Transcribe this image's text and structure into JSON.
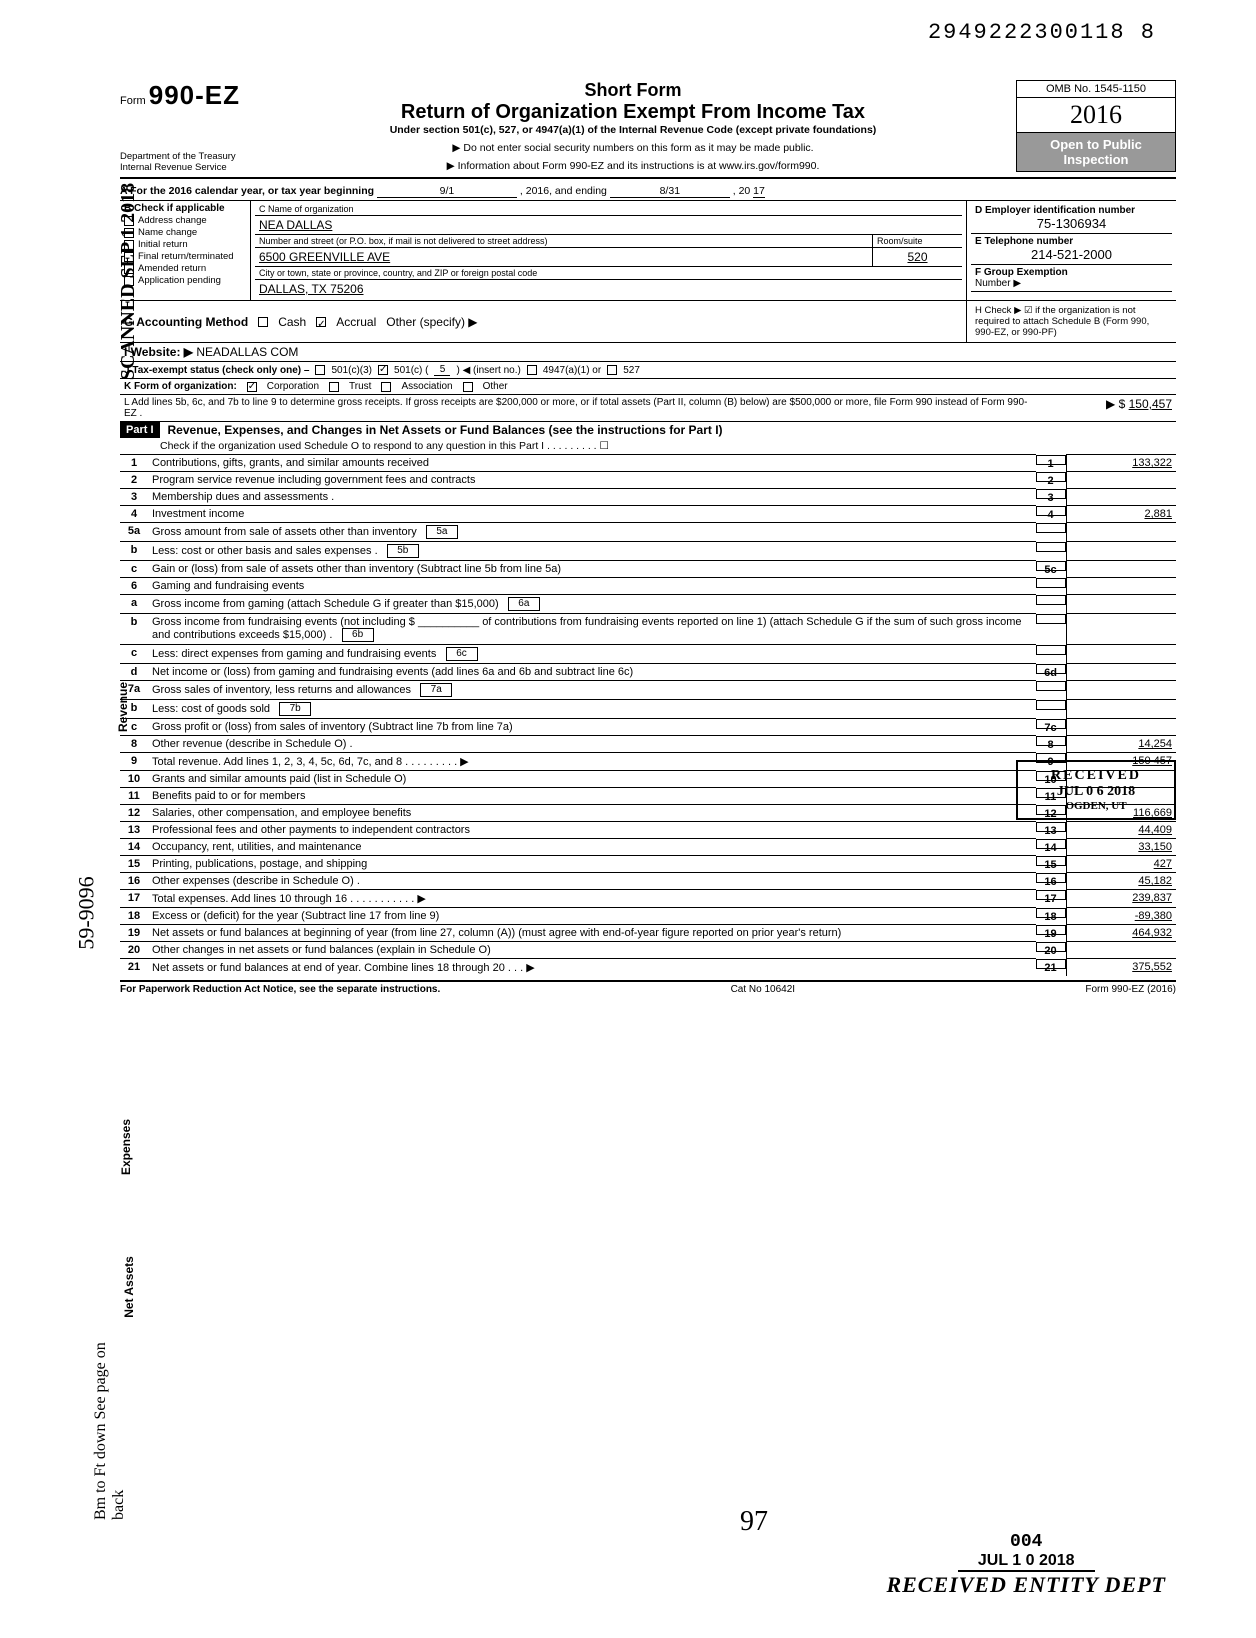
{
  "top_id": "2949222300118  8",
  "omb": "OMB No. 1545-1150",
  "form_prefix": "Form",
  "form_number": "990-EZ",
  "title_short": "Short Form",
  "title_main": "Return of Organization Exempt From Income Tax",
  "title_under": "Under section 501(c), 527, or 4947(a)(1) of the Internal Revenue Code (except private foundations)",
  "note1": "▶ Do not enter social security numbers on this form as it may be made public.",
  "note2": "▶ Information about Form 990-EZ and its instructions is at www.irs.gov/form990.",
  "year": "2016",
  "open": "Open to Public Inspection",
  "dept1": "Department of the Treasury",
  "dept2": "Internal Revenue Service",
  "line_a": "A For the 2016 calendar year, or tax year beginning",
  "a_begin": "9/1",
  "a_mid": ", 2016, and ending",
  "a_end": "8/31",
  "a_yr_lbl": ", 20",
  "a_yr": "17",
  "b_label": "B Check if applicable",
  "b_items": [
    "Address change",
    "Name change",
    "Initial return",
    "Final return/terminated",
    "Amended return",
    "Application pending"
  ],
  "c_label": "C Name of organization",
  "c_name": "NEA DALLAS",
  "c_addr_label": "Number and street (or P.O. box, if mail is not delivered to street address)",
  "c_addr": "6500 GREENVILLE AVE",
  "c_room_label": "Room/suite",
  "c_room": "520",
  "c_city_label": "City or town, state or province, country, and ZIP or foreign postal code",
  "c_city": "DALLAS, TX 75206",
  "d_label": "D Employer identification number",
  "d_val": "75-1306934",
  "e_label": "E Telephone number",
  "e_val": "214-521-2000",
  "f_label": "F Group Exemption",
  "f_label2": "Number ▶",
  "g_label": "G Accounting Method",
  "g_cash": "Cash",
  "g_accrual": "Accrual",
  "g_other": "Other (specify) ▶",
  "h_label": "H Check ▶ ☑ if the organization is not required to attach Schedule B (Form 990, 990-EZ, or 990-PF)",
  "i_label": "I  Website: ▶",
  "i_val": "NEADALLAS COM",
  "j_label": "J Tax-exempt status (check only one) –",
  "j_501c3": "501(c)(3)",
  "j_501c": "501(c) (",
  "j_501c_n": "5",
  "j_501c_after": ") ◀ (insert no.)",
  "j_4947": "4947(a)(1) or",
  "j_527": "527",
  "k_label": "K Form of organization:",
  "k_corp": "Corporation",
  "k_trust": "Trust",
  "k_assoc": "Association",
  "k_other": "Other",
  "l_text": "L Add lines 5b, 6c, and 7b to line 9 to determine gross receipts. If gross receipts are $200,000 or more, or if total assets (Part II, column (B) below) are $500,000 or more, file Form 990 instead of Form 990-EZ .",
  "l_arrow": "▶  $",
  "l_val": "150,457",
  "part1_head": "Part I",
  "part1_title": "Revenue, Expenses, and Changes in Net Assets or Fund Balances (see the instructions for Part I)",
  "part1_check": "Check if the organization used Schedule O to respond to any question in this Part I . . . . . . . . . ☐",
  "side_revenue": "Revenue",
  "side_expenses": "Expenses",
  "side_netassets": "Net Assets",
  "lines": [
    {
      "n": "1",
      "d": "Contributions, gifts, grants, and similar amounts received",
      "box": "1",
      "amt": "133,322"
    },
    {
      "n": "2",
      "d": "Program service revenue including government fees and contracts",
      "box": "2",
      "amt": ""
    },
    {
      "n": "3",
      "d": "Membership dues and assessments .",
      "box": "3",
      "amt": ""
    },
    {
      "n": "4",
      "d": "Investment income",
      "box": "4",
      "amt": "2,881"
    },
    {
      "n": "5a",
      "d": "Gross amount from sale of assets other than inventory",
      "mid": "5a",
      "box": "",
      "amt": ""
    },
    {
      "n": "b",
      "d": "Less: cost or other basis and sales expenses .",
      "mid": "5b",
      "box": "",
      "amt": ""
    },
    {
      "n": "c",
      "d": "Gain or (loss) from sale of assets other than inventory (Subtract line 5b from line 5a)",
      "box": "5c",
      "amt": ""
    },
    {
      "n": "6",
      "d": "Gaming and fundraising events",
      "box": "",
      "amt": ""
    },
    {
      "n": "a",
      "d": "Gross income from gaming (attach Schedule G if greater than $15,000)",
      "mid": "6a",
      "box": "",
      "amt": ""
    },
    {
      "n": "b",
      "d": "Gross income from fundraising events (not including  $ __________ of contributions from fundraising events reported on line 1) (attach Schedule G if the sum of such gross income and contributions exceeds $15,000) .",
      "mid": "6b",
      "box": "",
      "amt": ""
    },
    {
      "n": "c",
      "d": "Less: direct expenses from gaming and fundraising events",
      "mid": "6c",
      "box": "",
      "amt": ""
    },
    {
      "n": "d",
      "d": "Net income or (loss) from gaming and fundraising events (add lines 6a and 6b and subtract line 6c)",
      "box": "6d",
      "amt": ""
    },
    {
      "n": "7a",
      "d": "Gross sales of inventory, less returns and allowances",
      "mid": "7a",
      "box": "",
      "amt": ""
    },
    {
      "n": "b",
      "d": "Less: cost of goods sold",
      "mid": "7b",
      "box": "",
      "amt": ""
    },
    {
      "n": "c",
      "d": "Gross profit or (loss) from sales of inventory (Subtract line 7b from line 7a)",
      "box": "7c",
      "amt": ""
    },
    {
      "n": "8",
      "d": "Other revenue (describe in Schedule O) .",
      "box": "8",
      "amt": "14,254"
    },
    {
      "n": "9",
      "d": "Total revenue. Add lines 1, 2, 3, 4, 5c, 6d, 7c, and 8    .   .   .   .   .   .   .   .   . ▶",
      "box": "9",
      "amt": "150 457"
    },
    {
      "n": "10",
      "d": "Grants and similar amounts paid (list in Schedule O)",
      "box": "10",
      "amt": ""
    },
    {
      "n": "11",
      "d": "Benefits paid to or for members",
      "box": "11",
      "amt": ""
    },
    {
      "n": "12",
      "d": "Salaries, other compensation, and employee benefits",
      "box": "12",
      "amt": "116,669"
    },
    {
      "n": "13",
      "d": "Professional fees and other payments to independent contractors",
      "box": "13",
      "amt": "44,409"
    },
    {
      "n": "14",
      "d": "Occupancy, rent, utilities, and maintenance",
      "box": "14",
      "amt": "33,150"
    },
    {
      "n": "15",
      "d": "Printing, publications, postage, and shipping",
      "box": "15",
      "amt": "427"
    },
    {
      "n": "16",
      "d": "Other expenses (describe in Schedule O) .",
      "box": "16",
      "amt": "45,182"
    },
    {
      "n": "17",
      "d": "Total expenses. Add lines 10 through 16    .   .   .   .   .   .   .   .   .   .   . ▶",
      "box": "17",
      "amt": "239,837"
    },
    {
      "n": "18",
      "d": "Excess or (deficit) for the year (Subtract line 17 from line 9)",
      "box": "18",
      "amt": "-89,380"
    },
    {
      "n": "19",
      "d": "Net assets or fund balances at beginning of year (from line 27, column (A)) (must agree with end-of-year figure reported on prior year's return)",
      "box": "19",
      "amt": "464,932"
    },
    {
      "n": "20",
      "d": "Other changes in net assets or fund balances (explain in Schedule O)",
      "box": "20",
      "amt": ""
    },
    {
      "n": "21",
      "d": "Net assets or fund balances at end of year. Combine lines 18 through 20    .   .   . ▶",
      "box": "21",
      "amt": "375,552"
    }
  ],
  "footer_left": "For Paperwork Reduction Act Notice, see the separate instructions.",
  "footer_mid": "Cat No 10642I",
  "footer_right": "Form 990-EZ (2016)",
  "stamp_scanned": "SCANNED SEP 1 2018",
  "recv_box": "RECEIVED",
  "recv_date": "JUL 0 6 2018",
  "recv_loc": "OGDEN, UT",
  "bottom_004": "004",
  "bottom_date": "JUL 1 0 2018",
  "bottom_entity": "RECEIVED ENTITY DEPT",
  "hw_97": "97",
  "hw_ein_back": "Bm to Ft down See page on back",
  "hw_ein_side": "59-9096"
}
